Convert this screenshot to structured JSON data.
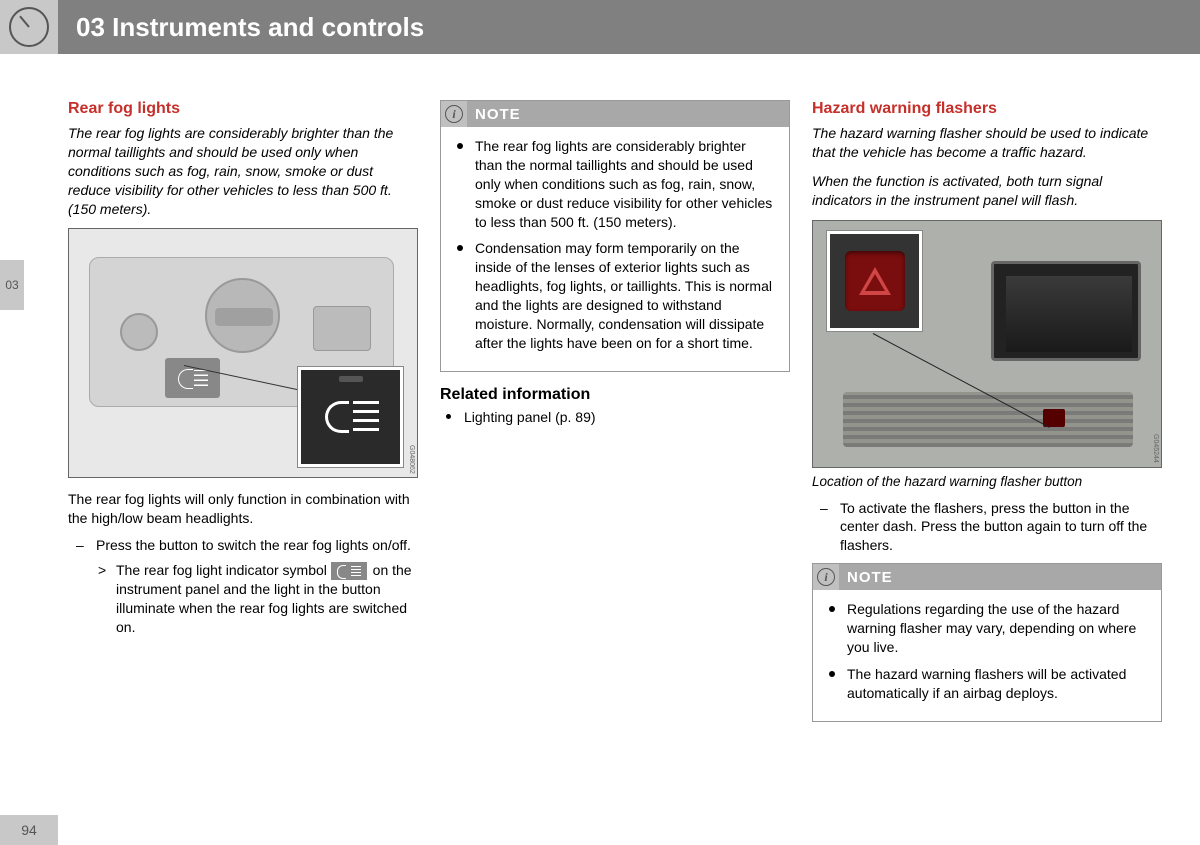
{
  "colors": {
    "heading_red": "#c6302b",
    "header_grey": "#808080",
    "tab_grey": "#c8c8c8",
    "note_grey": "#a8a8a8"
  },
  "header": {
    "chapter_label": "03 Instruments and controls"
  },
  "side_tab": "03",
  "page_number": "94",
  "col1": {
    "heading": "Rear fog lights",
    "intro": "The rear fog lights are considerably brighter than the normal taillights and should be used only when conditions such as fog, rain, snow, smoke or dust reduce visibility for other vehicles to less than 500 ft. (150 meters).",
    "figure_id": "G048062",
    "para1": "The rear fog lights will only function in combination with the high/low beam headlights.",
    "step1": "Press the button to switch the rear fog lights on/off.",
    "result_pre": "The rear fog light indicator symbol",
    "result_post": "on the instrument panel and the light in the button illuminate when the rear fog lights are switched on."
  },
  "col2": {
    "note_label": "NOTE",
    "note_items": [
      "The rear fog lights are considerably brighter than the normal taillights and should be used only when conditions such as fog, rain, snow, smoke or dust reduce visibility for other vehicles to less than 500 ft. (150 meters).",
      "Condensation may form temporarily on the inside of the lenses of exterior lights such as headlights, fog lights, or taillights. This is normal and the lights are designed to withstand moisture. Normally, condensation will dissipate after the lights have been on for a short time."
    ],
    "related_heading": "Related information",
    "related_items": [
      "Lighting panel (p. 89)"
    ]
  },
  "col3": {
    "heading": "Hazard warning flashers",
    "intro1": "The hazard warning flasher should be used to indicate that the vehicle has become a traffic hazard.",
    "intro2": "When the function is activated, both turn signal indicators in the instrument panel will flash.",
    "figure_id": "G045244",
    "caption": "Location of the hazard warning flasher button",
    "step1": "To activate the flashers, press the button in the center dash. Press the button again to turn off the flashers.",
    "note_label": "NOTE",
    "note_items": [
      "Regulations regarding the use of the hazard warning flasher may vary, depending on where you live.",
      "The hazard warning flashers will be activated automatically if an airbag deploys."
    ]
  }
}
